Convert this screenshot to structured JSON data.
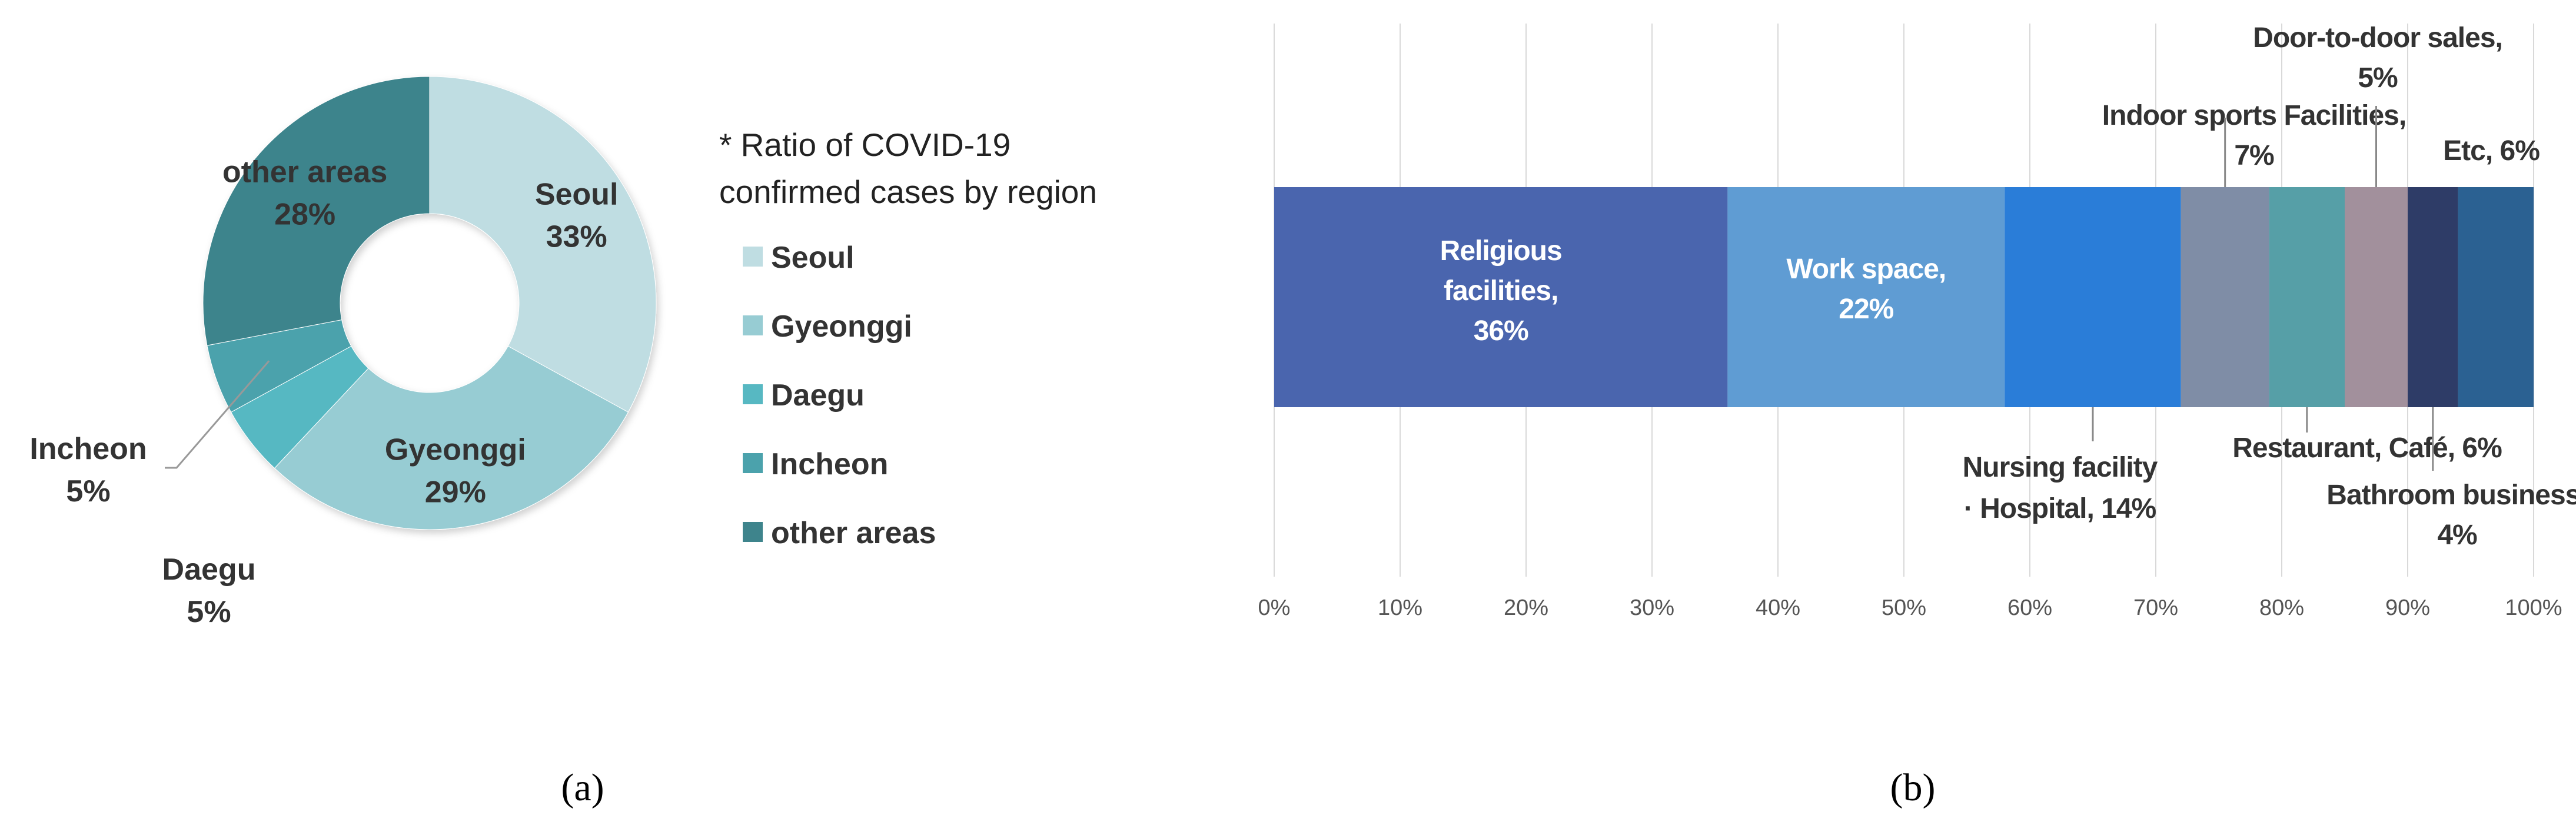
{
  "chart_data": [
    {
      "type": "pie",
      "panel_label": "(a)",
      "note": [
        "* Ratio of COVID-19",
        "confirmed cases by region"
      ],
      "slices": [
        {
          "name": "Seoul",
          "value": 33,
          "label": "33%",
          "color": "#BFDDE2"
        },
        {
          "name": "Gyeonggi",
          "value": 29,
          "label": "29%",
          "color": "#97CCD3"
        },
        {
          "name": "Daegu",
          "value": 5,
          "label": "5%",
          "color": "#57B8C2"
        },
        {
          "name": "Incheon",
          "value": 5,
          "label": "5%",
          "color": "#4BA2AC"
        },
        {
          "name": "other areas",
          "value": 28,
          "label": "28%",
          "color": "#3E848C"
        }
      ],
      "legend": [
        "Seoul",
        "Gyeonggi",
        "Daegu",
        "Incheon",
        "other areas"
      ]
    },
    {
      "type": "bar",
      "orientation": "horizontal-stacked-100",
      "panel_label": "(b)",
      "xlim": [
        0,
        100
      ],
      "xticks": [
        "0%",
        "10%",
        "20%",
        "30%",
        "40%",
        "50%",
        "60%",
        "70%",
        "80%",
        "90%",
        "100%"
      ],
      "grid": true,
      "segments": [
        {
          "name": "Religious facilities",
          "value": 36,
          "label_lines": [
            "Religious",
            "facilities,",
            "36%"
          ],
          "color": "#4A65AE"
        },
        {
          "name": "Work space",
          "value": 22,
          "label_lines": [
            "Work space,",
            "22%"
          ],
          "color": "#5F9CD3"
        },
        {
          "name": "Nursing facility · Hospital",
          "value": 14,
          "label_lines": [
            "Nursing facility",
            "· Hospital, 14%"
          ],
          "color": "#2A7DD8"
        },
        {
          "name": "Indoor sports Facilities",
          "value": 7,
          "label_lines": [
            "Indoor sports Facilities,",
            "7%"
          ],
          "color": "#7F8DA6"
        },
        {
          "name": "Restaurant, Café",
          "value": 6,
          "label_lines": [
            "Restaurant, Café, 6%"
          ],
          "color": "#569FA7"
        },
        {
          "name": "Door-to-door sales",
          "value": 5,
          "label_lines": [
            "Door-to-door sales,",
            "5%"
          ],
          "color": "#A2909C"
        },
        {
          "name": "Bathroom business",
          "value": 4,
          "label_lines": [
            "Bathroom business,",
            "4%"
          ],
          "color": "#2E3C67"
        },
        {
          "name": "Etc",
          "value": 6,
          "label_lines": [
            "Etc, 6%"
          ],
          "color": "#2B6192"
        }
      ]
    }
  ]
}
